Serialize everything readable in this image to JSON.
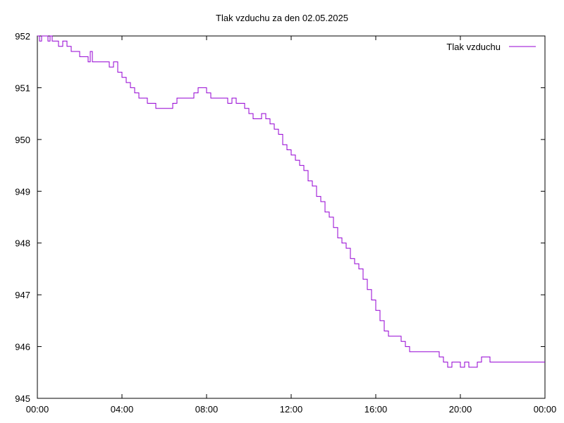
{
  "colors": {
    "series": "#9400d3",
    "axis": "#000000",
    "background": "#ffffff"
  },
  "chart_data": {
    "type": "line",
    "title": "Tlak vzduchu za den 02.05.2025",
    "xlabel": "",
    "ylabel": "",
    "xlim": [
      0,
      24
    ],
    "ylim": [
      945,
      952
    ],
    "grid": false,
    "legend": "top-right",
    "x_tick_labels": [
      "00:00",
      "04:00",
      "08:00",
      "12:00",
      "16:00",
      "20:00",
      "00:00"
    ],
    "x_tick_values": [
      0,
      4,
      8,
      12,
      16,
      20,
      24
    ],
    "y_tick_labels": [
      "945",
      "946",
      "947",
      "948",
      "949",
      "950",
      "951",
      "952"
    ],
    "y_tick_values": [
      945,
      946,
      947,
      948,
      949,
      950,
      951,
      952
    ],
    "series": [
      {
        "name": "Tlak vzduchu",
        "color": "#9400d3",
        "x": [
          0.0,
          0.1,
          0.2,
          0.4,
          0.5,
          0.6,
          0.7,
          0.9,
          1.0,
          1.2,
          1.4,
          1.6,
          1.8,
          2.0,
          2.2,
          2.4,
          2.5,
          2.6,
          2.8,
          3.0,
          3.2,
          3.4,
          3.6,
          3.8,
          4.0,
          4.2,
          4.4,
          4.6,
          4.8,
          5.0,
          5.2,
          5.4,
          5.6,
          5.8,
          6.0,
          6.2,
          6.4,
          6.6,
          6.8,
          7.0,
          7.2,
          7.4,
          7.6,
          7.8,
          8.0,
          8.2,
          8.4,
          8.6,
          8.8,
          9.0,
          9.2,
          9.4,
          9.6,
          9.8,
          10.0,
          10.2,
          10.4,
          10.6,
          10.8,
          11.0,
          11.2,
          11.4,
          11.6,
          11.8,
          12.0,
          12.2,
          12.4,
          12.6,
          12.8,
          13.0,
          13.2,
          13.4,
          13.6,
          13.8,
          14.0,
          14.2,
          14.4,
          14.6,
          14.8,
          15.0,
          15.2,
          15.4,
          15.6,
          15.8,
          16.0,
          16.2,
          16.4,
          16.6,
          16.8,
          17.0,
          17.2,
          17.4,
          17.6,
          17.8,
          18.0,
          18.2,
          18.4,
          18.6,
          18.8,
          19.0,
          19.2,
          19.4,
          19.6,
          19.8,
          20.0,
          20.2,
          20.4,
          20.6,
          20.8,
          21.0,
          21.2,
          21.4,
          21.6,
          21.8,
          22.0,
          22.2,
          22.4,
          22.6,
          22.8,
          23.0,
          23.2,
          23.4,
          23.6,
          23.8,
          24.0
        ],
        "values": [
          952.0,
          951.9,
          952.0,
          952.0,
          951.9,
          952.0,
          951.9,
          951.9,
          951.8,
          951.9,
          951.8,
          951.7,
          951.7,
          951.6,
          951.6,
          951.5,
          951.7,
          951.5,
          951.5,
          951.5,
          951.5,
          951.4,
          951.5,
          951.3,
          951.2,
          951.1,
          951.0,
          950.9,
          950.8,
          950.8,
          950.7,
          950.7,
          950.6,
          950.6,
          950.6,
          950.6,
          950.7,
          950.8,
          950.8,
          950.8,
          950.8,
          950.9,
          951.0,
          951.0,
          950.9,
          950.8,
          950.8,
          950.8,
          950.8,
          950.7,
          950.8,
          950.7,
          950.7,
          950.6,
          950.5,
          950.4,
          950.4,
          950.5,
          950.4,
          950.3,
          950.2,
          950.1,
          949.9,
          949.8,
          949.7,
          949.6,
          949.5,
          949.4,
          949.2,
          949.1,
          948.9,
          948.8,
          948.6,
          948.5,
          948.3,
          948.1,
          948.0,
          947.9,
          947.7,
          947.6,
          947.5,
          947.3,
          947.1,
          946.9,
          946.7,
          946.5,
          946.3,
          946.2,
          946.2,
          946.2,
          946.1,
          946.0,
          945.9,
          945.9,
          945.9,
          945.9,
          945.9,
          945.9,
          945.9,
          945.8,
          945.7,
          945.6,
          945.7,
          945.7,
          945.6,
          945.7,
          945.6,
          945.6,
          945.7,
          945.8,
          945.8,
          945.7,
          945.7,
          945.7,
          945.7,
          945.7,
          945.7,
          945.7,
          945.7,
          945.7,
          945.7,
          945.7,
          945.7,
          945.7,
          945.7
        ]
      }
    ]
  }
}
